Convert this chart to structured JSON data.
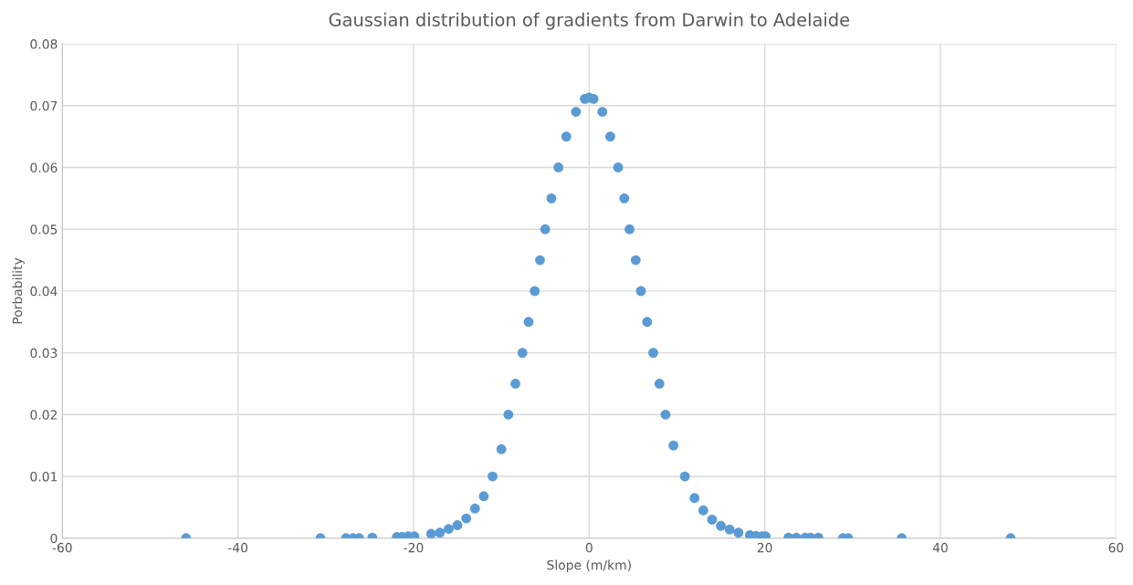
{
  "chart_data": {
    "type": "scatter",
    "title": "Gaussian distribution of gradients from Darwin to Adelaide",
    "xlabel": "Slope (m/km)",
    "ylabel": "Porbability",
    "x": [
      -45.9,
      -30.6,
      -27.7,
      -26.9,
      -26.2,
      -24.7,
      -21.9,
      -21.3,
      -20.6,
      -19.9,
      -18,
      -17,
      -16,
      -15,
      -14,
      -13,
      -12,
      -11,
      -10,
      -9.2,
      -8.4,
      -7.6,
      -6.9,
      -6.2,
      -5.6,
      -5.0,
      -4.3,
      -3.5,
      -2.6,
      -1.5,
      -0.5,
      0,
      0.5,
      1.5,
      2.4,
      3.3,
      4.0,
      4.6,
      5.3,
      5.9,
      6.6,
      7.3,
      8.0,
      8.7,
      9.6,
      10.9,
      12,
      13,
      14,
      15,
      16,
      17,
      18.3,
      19.0,
      19.7,
      20.1,
      22.7,
      23.6,
      24.6,
      25.2,
      26.1,
      28.9,
      29.5,
      35.6,
      48.0
    ],
    "series": [
      {
        "color": "#5b9bd5",
        "values": [
          0,
          0,
          0,
          0,
          0,
          0.0001,
          0.0002,
          0.0002,
          0.0003,
          0.0003,
          0.0007,
          0.0009,
          0.0015,
          0.0021,
          0.0032,
          0.0048,
          0.0068,
          0.01,
          0.0144,
          0.02,
          0.025,
          0.03,
          0.035,
          0.04,
          0.045,
          0.05,
          0.055,
          0.06,
          0.065,
          0.069,
          0.0711,
          0.0713,
          0.0711,
          0.069,
          0.065,
          0.06,
          0.055,
          0.05,
          0.045,
          0.04,
          0.035,
          0.03,
          0.025,
          0.02,
          0.015,
          0.01,
          0.0065,
          0.0045,
          0.003,
          0.002,
          0.0014,
          0.0009,
          0.0005,
          0.0004,
          0.0003,
          0.0003,
          0.0001,
          0.0001,
          0.0001,
          0.0001,
          0.0001,
          0,
          0,
          0,
          0
        ]
      }
    ],
    "xlim": [
      -60,
      60
    ],
    "xticks": [
      -60,
      -40,
      -20,
      0,
      20,
      40,
      60
    ],
    "ylim": [
      0,
      0.08
    ],
    "yticks": [
      0,
      0.01,
      0.02,
      0.03,
      0.04,
      0.05,
      0.06,
      0.07,
      0.08
    ],
    "grid": true,
    "marker": "circle"
  }
}
